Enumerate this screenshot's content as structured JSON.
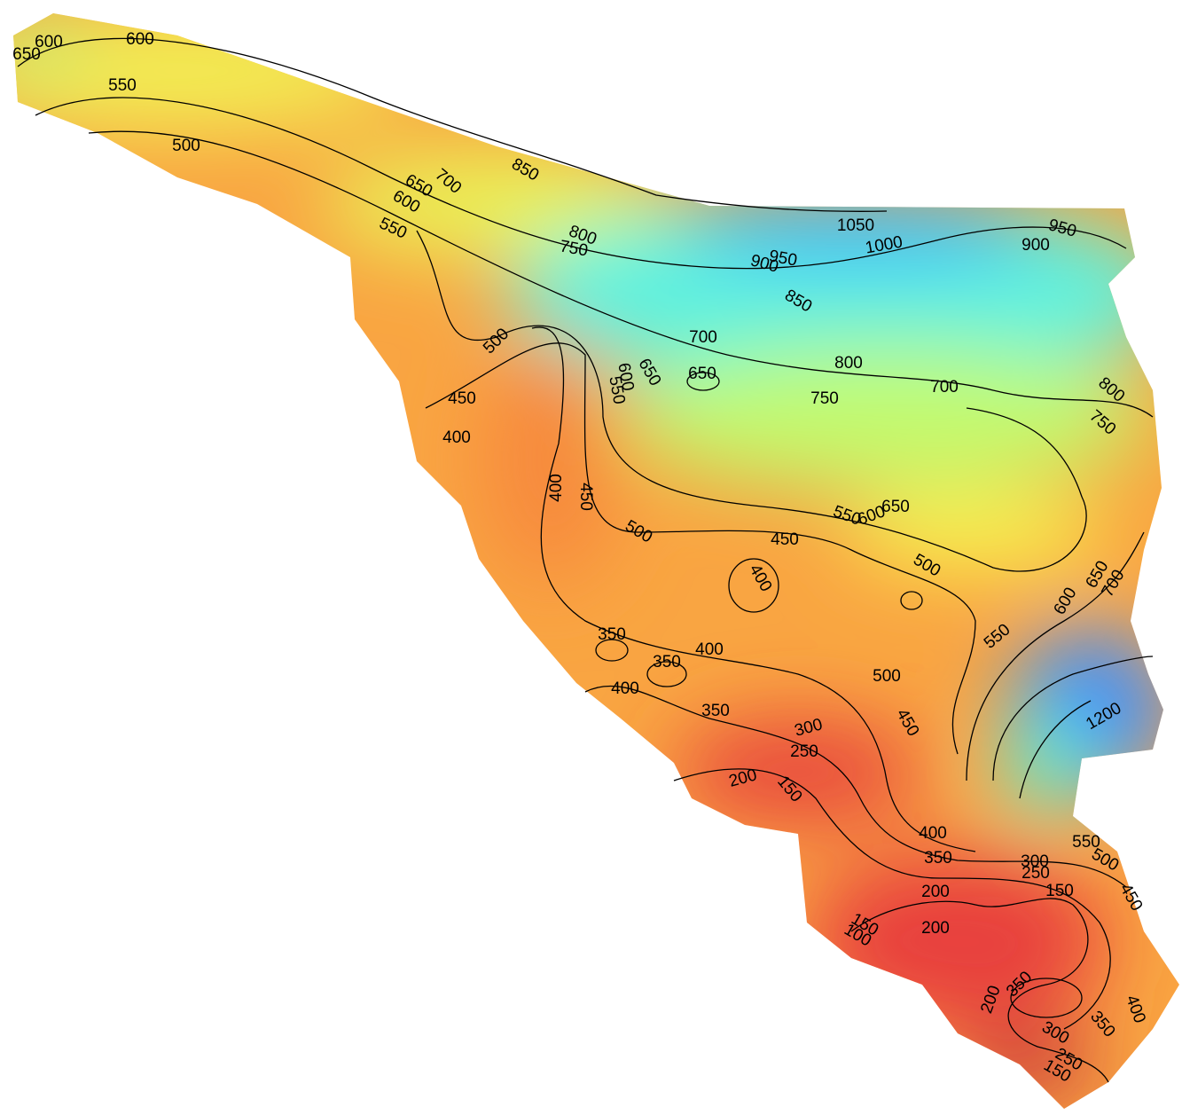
{
  "contour_labels": [
    600,
    650,
    600,
    550,
    500,
    650,
    700,
    600,
    550,
    850,
    800,
    750,
    1050,
    1000,
    950,
    900,
    950,
    900,
    850,
    700,
    800,
    750,
    700,
    800,
    750,
    650,
    650,
    600,
    550,
    500,
    450,
    400,
    400,
    450,
    500,
    650,
    600,
    550,
    450,
    400,
    500,
    350,
    350,
    400,
    400,
    500,
    450,
    350,
    300,
    250,
    200,
    150,
    550,
    600,
    650,
    700,
    1200,
    400,
    350,
    300,
    250,
    550,
    500,
    450,
    200,
    150,
    150,
    100,
    200,
    200,
    350,
    400,
    350,
    300,
    250,
    150
  ]
}
